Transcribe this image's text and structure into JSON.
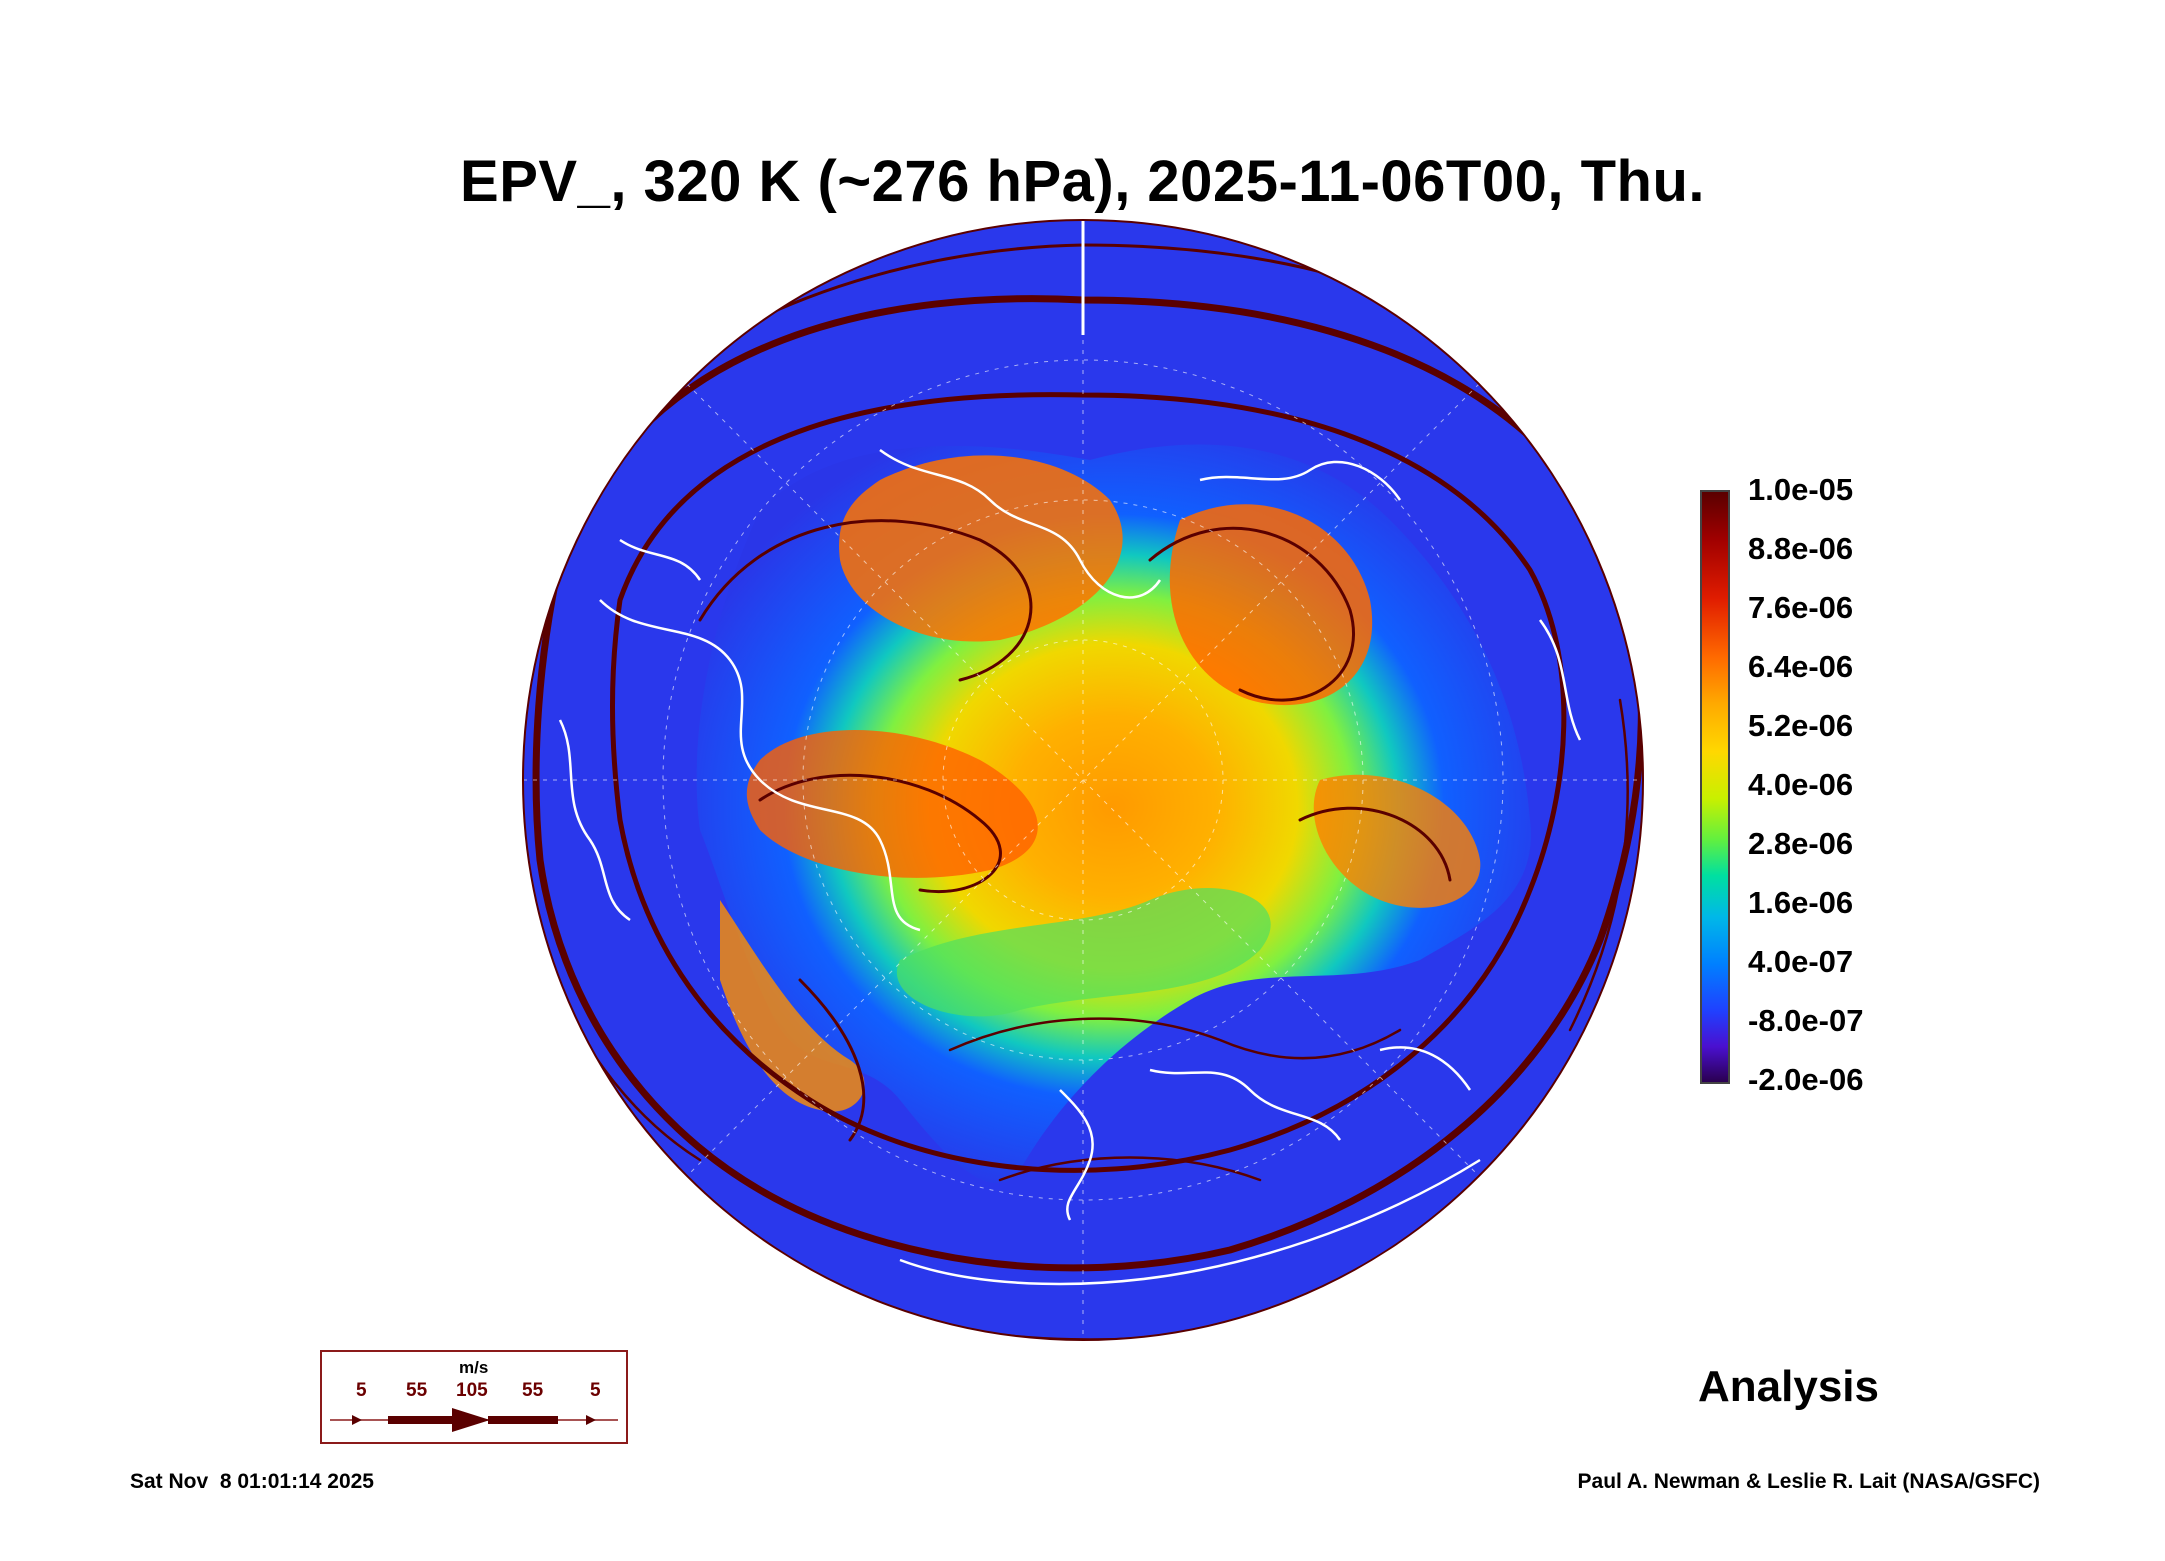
{
  "title": "EPV_, 320 K (~276 hPa), 2025-11-06T00, Thu.",
  "chart_data": {
    "type": "heatmap",
    "projection": "north polar stereographic",
    "variable": "EPV_",
    "level": "320 K (~276 hPa)",
    "valid_time": "2025-11-06T00, Thu.",
    "overlay": "wind streamlines (m/s)",
    "colorbar": {
      "min": -2e-06,
      "max": 1e-05,
      "tick_labels": [
        "1.0e-05",
        "8.8e-06",
        "7.6e-06",
        "6.4e-06",
        "5.2e-06",
        "4.0e-06",
        "2.8e-06",
        "1.6e-06",
        "4.0e-07",
        "-8.0e-07",
        "-2.0e-06"
      ]
    },
    "wind_legend": {
      "unit": "m/s",
      "values": [
        "5",
        "55",
        "105",
        "55",
        "5"
      ]
    }
  },
  "label": "Analysis",
  "footer": {
    "timestamp": "Sat Nov  8 01:01:14 2025",
    "credit": "Paul A. Newman & Leslie R. Lait (NASA/GSFC)"
  },
  "colors": {
    "ocean_low": "#2a3cf0",
    "mid": "#40e060",
    "high": "#ff7a00",
    "peak": "#8a0000",
    "streamline": "#5a0000",
    "coast": "#ffffff"
  }
}
